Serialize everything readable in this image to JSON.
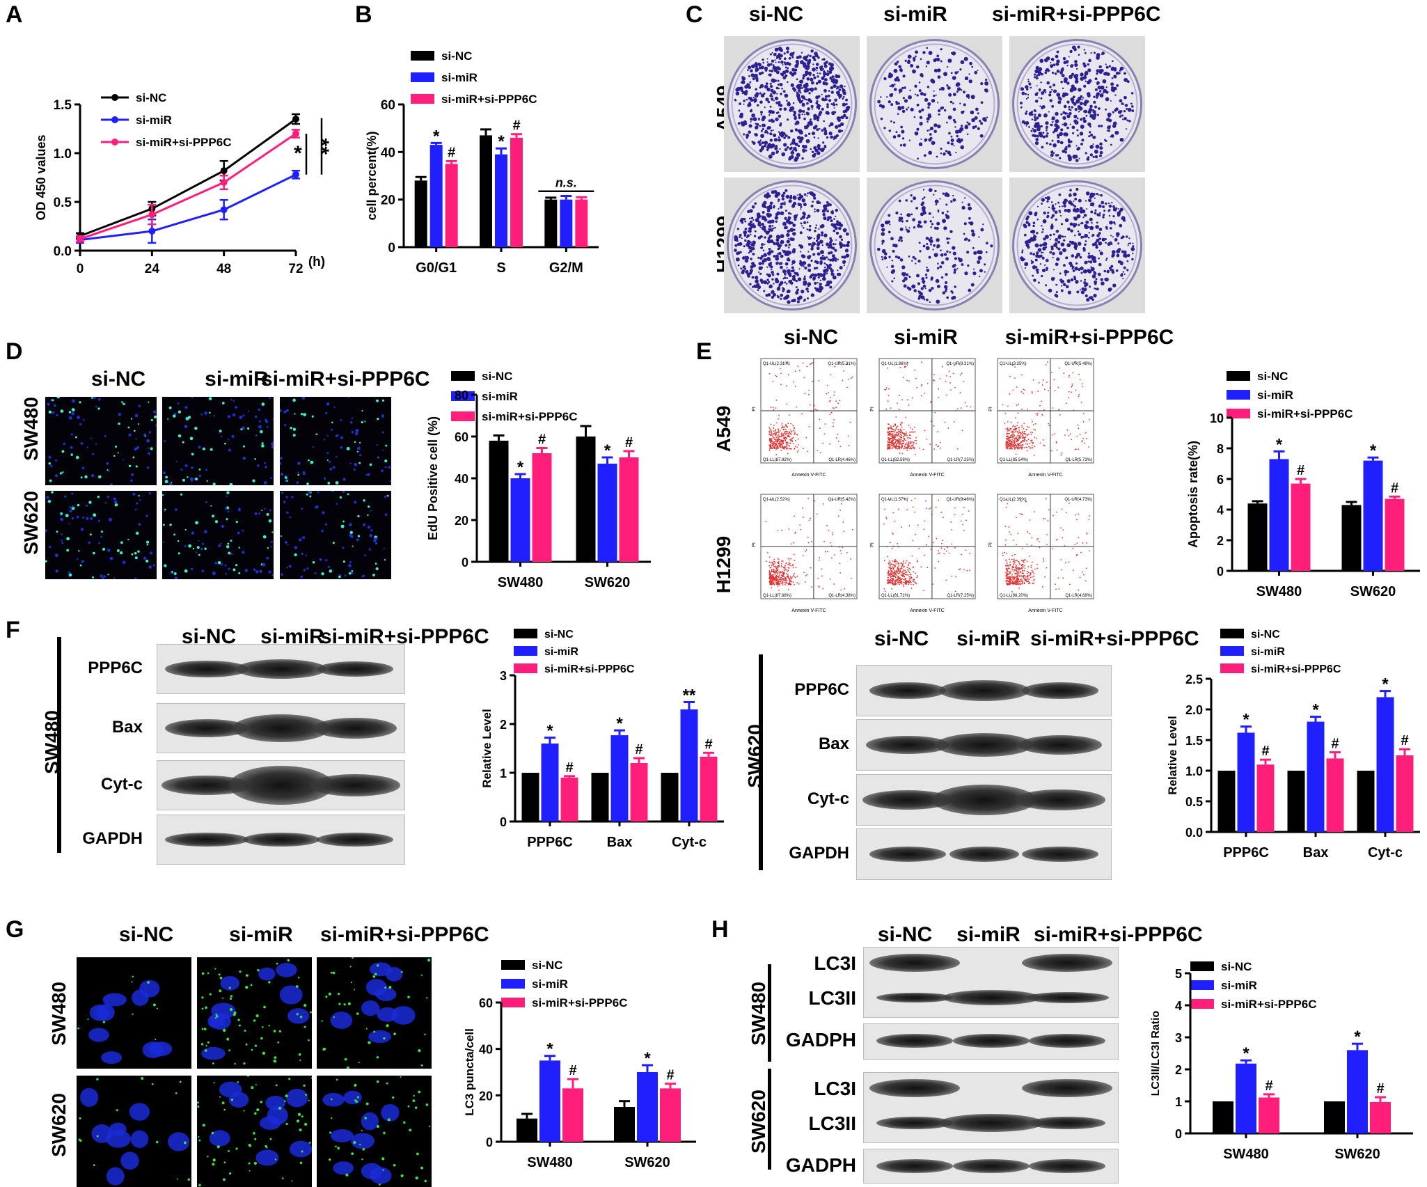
{
  "panel_letters": [
    "A",
    "B",
    "C",
    "D",
    "E",
    "F",
    "G",
    "H"
  ],
  "groups": [
    "si-NC",
    "si-miR",
    "si-miR+si-PPP6C"
  ],
  "colors": {
    "si_nc": "#000000",
    "si_mir": "#1f1fff",
    "si_mir_ppp6c": "#ff1f7a"
  },
  "panel_c": {
    "row_labels": [
      "A549",
      "H1299"
    ]
  },
  "panel_d": {
    "row_labels": [
      "SW480",
      "SW620"
    ]
  },
  "panel_e": {
    "row_labels": [
      "A549",
      "H1299"
    ],
    "flow_axis_x": "Annexin V-FITC",
    "flow_axis_y": "PI",
    "quadrants": [
      [
        "Q1-UL(2.31%)",
        "Q1-UR(5.31%)",
        "Q1-LL(87.92%)",
        "Q1-LR(4.46%)"
      ],
      [
        "Q1-UL(1.86%)",
        "Q1-UR(8.31%)",
        "Q1-LL(82.58%)",
        "Q1-LR(7.25%)"
      ],
      [
        "Q1-UL(3.25%)",
        "Q1-UR(5.48%)",
        "Q1-LL(85.54%)",
        "Q1-LR(5.73%)"
      ],
      [
        "Q1-UL(2.52%)",
        "Q1-UR(5.42%)",
        "Q1-LL(87.68%)",
        "Q1-LR(4.38%)"
      ],
      [
        "Q1-UL(1.57%)",
        "Q1-UR(9.46%)",
        "Q1-LL(81.72%)",
        "Q1-LR(7.25%)"
      ],
      [
        "Q1-UL(2.39%)",
        "Q1-UR(4.73%)",
        "Q1-LL(88.20%)",
        "Q1-LR(4.68%)"
      ]
    ]
  },
  "panel_f": {
    "left_cell": "SW480",
    "right_cell": "SW620",
    "blot_rows": [
      "PPP6C",
      "Bax",
      "Cyt-c",
      "GAPDH"
    ]
  },
  "panel_g": {
    "row_labels": [
      "SW480",
      "SW620"
    ]
  },
  "panel_h": {
    "cells": [
      "SW480",
      "SW620"
    ],
    "blot_rows": [
      "LC3I",
      "LC3II",
      "GADPH"
    ]
  },
  "chart_data": [
    {
      "id": "A",
      "type": "line",
      "x": [
        0,
        24,
        48,
        72
      ],
      "xunit": "(h)",
      "ylabel": "OD 450 values",
      "ylim": [
        0.0,
        1.5
      ],
      "yticks": [
        "0.0",
        "0.5",
        "1.0",
        "1.5"
      ],
      "series": [
        {
          "name": "si-NC",
          "values": [
            0.15,
            0.43,
            0.82,
            1.35
          ],
          "err": [
            0.03,
            0.07,
            0.1,
            0.05
          ]
        },
        {
          "name": "si-miR",
          "values": [
            0.11,
            0.2,
            0.42,
            0.78
          ],
          "err": [
            0.03,
            0.12,
            0.1,
            0.04
          ]
        },
        {
          "name": "si-miR+si-PPP6C",
          "values": [
            0.12,
            0.37,
            0.7,
            1.2
          ],
          "err": [
            0.03,
            0.1,
            0.07,
            0.04
          ]
        }
      ],
      "annotations": [
        "*",
        "**"
      ]
    },
    {
      "id": "B",
      "type": "bar",
      "categories": [
        "G0/G1",
        "S",
        "G2/M"
      ],
      "ylabel": "cell percent(%)",
      "ylim": [
        0,
        60
      ],
      "yticks": [
        "0",
        "20",
        "40",
        "60"
      ],
      "series": [
        {
          "name": "si-NC",
          "values": [
            28,
            47,
            20
          ],
          "err": [
            1.5,
            2.5,
            0.8
          ]
        },
        {
          "name": "si-miR",
          "values": [
            43,
            39,
            20
          ],
          "err": [
            0.8,
            2.5,
            1.5
          ]
        },
        {
          "name": "si-miR+si-PPP6C",
          "values": [
            35,
            46,
            20
          ],
          "err": [
            1.2,
            1.5,
            1.0
          ]
        }
      ],
      "marks": [
        [
          "",
          "*",
          "#"
        ],
        [
          "",
          "*",
          "#"
        ],
        [
          "",
          "",
          ""
        ]
      ],
      "ns_label": "n.s."
    },
    {
      "id": "D",
      "type": "bar",
      "categories": [
        "SW480",
        "SW620"
      ],
      "ylabel": "EdU Positive cell (%)",
      "ylim": [
        0,
        80
      ],
      "yticks": [
        "0",
        "20",
        "40",
        "60",
        "80"
      ],
      "series": [
        {
          "name": "si-NC",
          "values": [
            58,
            60
          ],
          "err": [
            2.5,
            5
          ]
        },
        {
          "name": "si-miR",
          "values": [
            40,
            47
          ],
          "err": [
            2,
            3
          ]
        },
        {
          "name": "si-miR+si-PPP6C",
          "values": [
            52,
            50
          ],
          "err": [
            2.5,
            3
          ]
        }
      ],
      "marks": [
        [
          "",
          "*",
          "#"
        ],
        [
          "",
          "*",
          "#"
        ]
      ]
    },
    {
      "id": "E",
      "type": "bar",
      "categories": [
        "SW480",
        "SW620"
      ],
      "ylabel": "Apoptosis rate(%)",
      "ylim": [
        0,
        10
      ],
      "yticks": [
        "0",
        "2",
        "4",
        "6",
        "8",
        "10"
      ],
      "series": [
        {
          "name": "si-NC",
          "values": [
            4.4,
            4.3
          ],
          "err": [
            0.15,
            0.2
          ]
        },
        {
          "name": "si-miR",
          "values": [
            7.3,
            7.2
          ],
          "err": [
            0.5,
            0.2
          ]
        },
        {
          "name": "si-miR+si-PPP6C",
          "values": [
            5.7,
            4.7
          ],
          "err": [
            0.3,
            0.15
          ]
        }
      ],
      "marks": [
        [
          "",
          "*",
          "#"
        ],
        [
          "",
          "*",
          "#"
        ]
      ]
    },
    {
      "id": "F-SW480",
      "type": "bar",
      "categories": [
        "PPP6C",
        "Bax",
        "Cyt-c"
      ],
      "ylabel": "Relative Level",
      "ylim": [
        0,
        3
      ],
      "yticks": [
        "0",
        "1",
        "2",
        "3"
      ],
      "series": [
        {
          "name": "si-NC",
          "values": [
            1,
            1,
            1
          ],
          "err": [
            0,
            0,
            0
          ]
        },
        {
          "name": "si-miR",
          "values": [
            1.6,
            1.77,
            2.3
          ],
          "err": [
            0.12,
            0.1,
            0.15
          ]
        },
        {
          "name": "si-miR+si-PPP6C",
          "values": [
            0.9,
            1.2,
            1.33
          ],
          "err": [
            0.03,
            0.1,
            0.08
          ]
        }
      ],
      "marks": [
        [
          "",
          "*",
          "#"
        ],
        [
          "",
          "*",
          "#"
        ],
        [
          "",
          "**",
          "#"
        ]
      ]
    },
    {
      "id": "F-SW620",
      "type": "bar",
      "categories": [
        "PPP6C",
        "Bax",
        "Cyt-c"
      ],
      "ylabel": "Relative Level",
      "ylim": [
        0,
        2.5
      ],
      "yticks": [
        "0.0",
        "0.5",
        "1.0",
        "1.5",
        "2.0",
        "2.5"
      ],
      "series": [
        {
          "name": "si-NC",
          "values": [
            1,
            1,
            1
          ],
          "err": [
            0,
            0,
            0
          ]
        },
        {
          "name": "si-miR",
          "values": [
            1.62,
            1.8,
            2.2
          ],
          "err": [
            0.1,
            0.08,
            0.1
          ]
        },
        {
          "name": "si-miR+si-PPP6C",
          "values": [
            1.1,
            1.2,
            1.25
          ],
          "err": [
            0.08,
            0.1,
            0.1
          ]
        }
      ],
      "marks": [
        [
          "",
          "*",
          "#"
        ],
        [
          "",
          "*",
          "#"
        ],
        [
          "",
          "*",
          "#"
        ]
      ]
    },
    {
      "id": "G",
      "type": "bar",
      "categories": [
        "SW480",
        "SW620"
      ],
      "ylabel": "LC3 puncta/cell",
      "ylim": [
        0,
        60
      ],
      "yticks": [
        "0",
        "20",
        "40",
        "60"
      ],
      "series": [
        {
          "name": "si-NC",
          "values": [
            10,
            15
          ],
          "err": [
            2,
            2.5
          ]
        },
        {
          "name": "si-miR",
          "values": [
            35,
            30
          ],
          "err": [
            2,
            3
          ]
        },
        {
          "name": "si-miR+si-PPP6C",
          "values": [
            23,
            23
          ],
          "err": [
            4,
            2
          ]
        }
      ],
      "marks": [
        [
          "",
          "*",
          "#"
        ],
        [
          "",
          "*",
          "#"
        ]
      ]
    },
    {
      "id": "H",
      "type": "bar",
      "categories": [
        "SW480",
        "SW620"
      ],
      "ylabel": "LC3II/LC3I Ratio",
      "ylim": [
        0,
        5
      ],
      "yticks": [
        "0",
        "1",
        "2",
        "3",
        "4",
        "5"
      ],
      "series": [
        {
          "name": "si-NC",
          "values": [
            1,
            1
          ],
          "err": [
            0,
            0
          ]
        },
        {
          "name": "si-miR",
          "values": [
            2.18,
            2.6
          ],
          "err": [
            0.1,
            0.2
          ]
        },
        {
          "name": "si-miR+si-PPP6C",
          "values": [
            1.12,
            0.98
          ],
          "err": [
            0.1,
            0.15
          ]
        }
      ],
      "marks": [
        [
          "",
          "*",
          "#"
        ],
        [
          "",
          "*",
          "#"
        ]
      ]
    }
  ]
}
